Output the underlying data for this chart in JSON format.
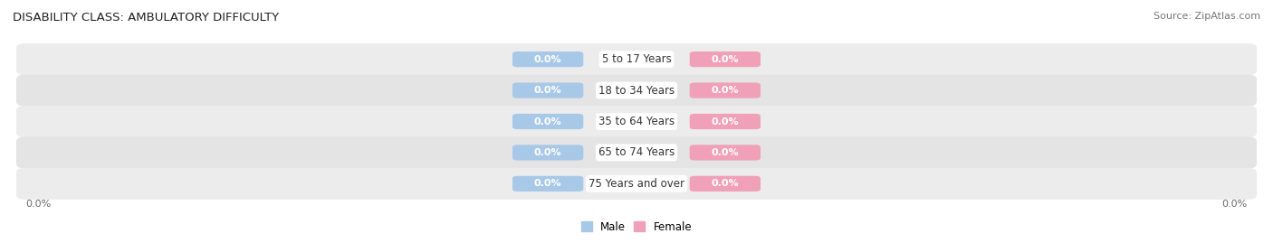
{
  "title": "DISABILITY CLASS: AMBULATORY DIFFICULTY",
  "source": "Source: ZipAtlas.com",
  "categories": [
    "5 to 17 Years",
    "18 to 34 Years",
    "35 to 64 Years",
    "65 to 74 Years",
    "75 Years and over"
  ],
  "male_values": [
    0.0,
    0.0,
    0.0,
    0.0,
    0.0
  ],
  "female_values": [
    0.0,
    0.0,
    0.0,
    0.0,
    0.0
  ],
  "male_color": "#a8c8e8",
  "female_color": "#f0a0b8",
  "male_label": "Male",
  "female_label": "Female",
  "row_colors": [
    "#ececec",
    "#e4e4e4"
  ],
  "ylim_left_label": "0.0%",
  "ylim_right_label": "0.0%",
  "title_fontsize": 9.5,
  "source_fontsize": 8,
  "value_fontsize": 8,
  "category_fontsize": 8.5,
  "background_color": "#ffffff"
}
